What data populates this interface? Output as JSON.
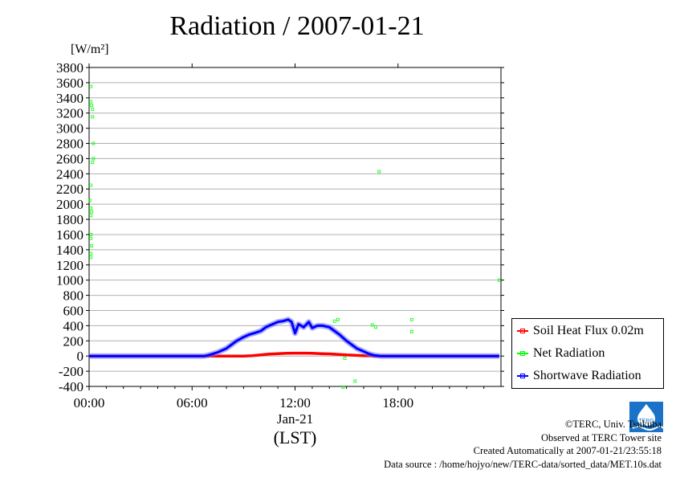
{
  "header": {
    "title": "Radiation / 2007-01-21",
    "unit": "[W/m²]"
  },
  "chart_data": {
    "type": "line",
    "title": "Radiation / 2007-01-21",
    "ylabel": "[W/m²]",
    "xlabel": "Jan-21",
    "xlabel2": "(LST)",
    "ylim": [
      -400,
      3800
    ],
    "xlim": [
      0,
      24
    ],
    "grid": true,
    "legend_position": "right",
    "y_ticks": [
      -400,
      -200,
      0,
      200,
      400,
      600,
      800,
      1000,
      1200,
      1400,
      1600,
      1800,
      2000,
      2200,
      2400,
      2600,
      2800,
      3000,
      3200,
      3400,
      3600,
      3800
    ],
    "y_tick_labels": [
      "-400",
      "-200",
      "0",
      "200",
      "400",
      "600",
      "800",
      "1000",
      "1200",
      "1400",
      "1600",
      "1800",
      "2000",
      "2200",
      "2400",
      "2600",
      "2800",
      "3000",
      "3200",
      "3400",
      "3600",
      "3800"
    ],
    "x_ticks": [
      0,
      6,
      12,
      18
    ],
    "x_tick_labels": [
      "00:00",
      "06:00",
      "12:00",
      "18:00"
    ],
    "series": [
      {
        "name": "Soil Heat Flux 0.02m",
        "color": "#ff0000",
        "x": [
          0,
          3,
          6,
          8,
          9,
          9.5,
          10,
          10.5,
          11,
          11.5,
          12,
          12.5,
          13,
          13.5,
          14,
          14.5,
          15,
          16,
          17,
          18,
          20,
          22,
          23.9
        ],
        "values": [
          0,
          0,
          0,
          0,
          0,
          5,
          15,
          25,
          32,
          36,
          38,
          38,
          36,
          32,
          28,
          22,
          15,
          5,
          0,
          0,
          0,
          0,
          0
        ]
      },
      {
        "name": "Net Radiation",
        "color": "#00ff00",
        "x": [
          0.1,
          0.1,
          0.15,
          0.1,
          0.1,
          0.1,
          0.15,
          0.1,
          0.05,
          0.1,
          0.2,
          0.25,
          0.25,
          0.2,
          0.2,
          0.15,
          0.1,
          0.1,
          14.3,
          14.5,
          14.9,
          15.5,
          16.5,
          16.7,
          18.8,
          18.8,
          16.9,
          14.8,
          23.9
        ],
        "values": [
          1300,
          1350,
          1450,
          1550,
          1600,
          1850,
          1900,
          1950,
          2050,
          2250,
          2550,
          2600,
          2800,
          3150,
          3250,
          3300,
          3350,
          3550,
          460,
          480,
          -30,
          -330,
          410,
          380,
          480,
          320,
          2430,
          -410,
          1000
        ]
      },
      {
        "name": "Shortwave Radiation",
        "color": "#0000ff",
        "x": [
          0,
          3,
          6,
          6.7,
          7,
          7.5,
          8,
          8.3,
          8.6,
          9,
          9.3,
          9.6,
          10,
          10.3,
          10.6,
          11,
          11.3,
          11.6,
          11.8,
          12,
          12.2,
          12.5,
          12.8,
          13,
          13.3,
          13.6,
          14,
          14.3,
          14.6,
          15,
          15.3,
          15.6,
          16,
          16.3,
          16.6,
          17,
          18,
          20,
          22,
          23.9
        ],
        "values": [
          0,
          0,
          0,
          0,
          15,
          50,
          100,
          150,
          200,
          250,
          280,
          300,
          330,
          380,
          410,
          450,
          460,
          480,
          450,
          300,
          420,
          380,
          450,
          370,
          400,
          400,
          380,
          330,
          280,
          200,
          150,
          100,
          60,
          30,
          10,
          0,
          0,
          0,
          0,
          0
        ]
      }
    ]
  },
  "legend": {
    "items": [
      {
        "label": "Soil Heat Flux 0.02m",
        "color": "#ff0000"
      },
      {
        "label": "Net Radiation",
        "color": "#00ff00"
      },
      {
        "label": "Shortwave Radiation",
        "color": "#0000ff"
      }
    ]
  },
  "credits": {
    "line1": "©TERC, Univ. Tsukuba",
    "line2": "Observed at TERC Tower site",
    "line3": "Created Automatically at 2007-01-21/23:55:18",
    "line4": "Data source : /home/hojyo/new/TERC-data/sorted_data/MET.10s.dat"
  },
  "logo": {
    "text": "TERC"
  }
}
